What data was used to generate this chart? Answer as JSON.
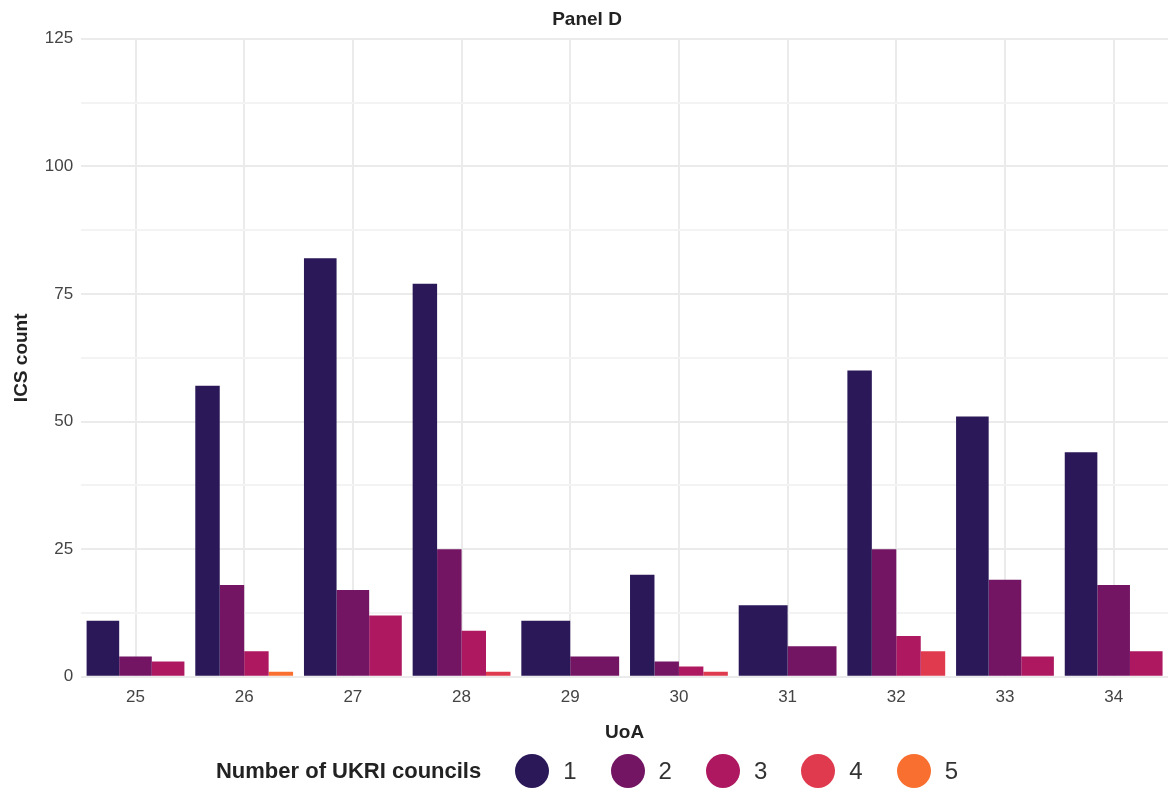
{
  "chart_data": {
    "type": "bar",
    "title": "Panel D",
    "xlabel": "UoA",
    "ylabel": "ICS count",
    "legend_title": "Number of UKRI councils",
    "categories": [
      "25",
      "26",
      "27",
      "28",
      "29",
      "30",
      "31",
      "32",
      "33",
      "34"
    ],
    "series": [
      {
        "name": "1",
        "color": "#2a1858",
        "values": [
          11,
          57,
          82,
          77,
          11,
          20,
          14,
          60,
          51,
          44
        ]
      },
      {
        "name": "2",
        "color": "#731563",
        "values": [
          4,
          18,
          17,
          25,
          4,
          3,
          6,
          25,
          19,
          18
        ]
      },
      {
        "name": "3",
        "color": "#ad1861",
        "values": [
          3,
          5,
          12,
          9,
          null,
          2,
          null,
          8,
          4,
          5
        ]
      },
      {
        "name": "4",
        "color": "#e03a4e",
        "values": [
          null,
          null,
          null,
          1,
          null,
          1,
          null,
          5,
          null,
          null
        ]
      },
      {
        "name": "5",
        "color": "#f86f30",
        "values": [
          null,
          1,
          null,
          null,
          null,
          null,
          null,
          null,
          null,
          null
        ]
      }
    ],
    "ylim": [
      0,
      125
    ],
    "yticks": [
      0,
      {
        "value": 12.5,
        "label": null
      },
      25,
      {
        "value": 37.5,
        "label": null
      },
      50,
      {
        "value": 62.5,
        "label": null
      },
      75,
      {
        "value": 87.5,
        "label": null
      },
      100,
      {
        "value": 112.5,
        "label": null
      },
      125
    ],
    "grid": true,
    "legend": "bottom"
  }
}
